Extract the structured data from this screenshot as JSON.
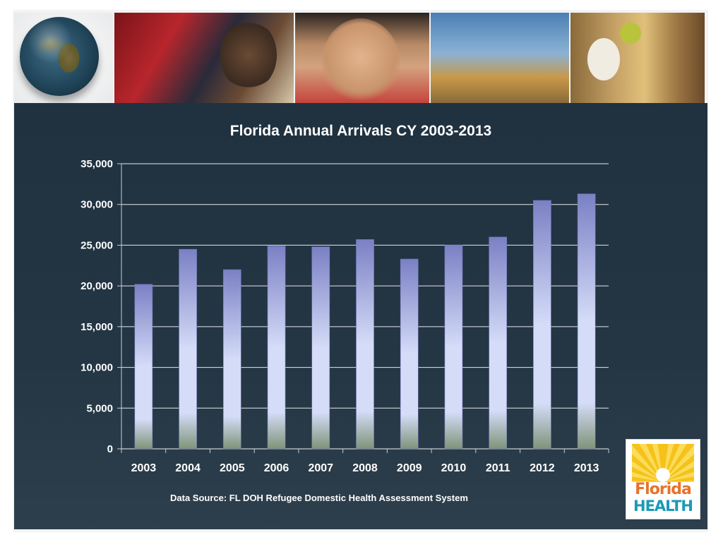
{
  "chart_data": {
    "type": "bar",
    "title": "Florida Annual Arrivals CY 2003-2013",
    "xlabel": "",
    "ylabel": "",
    "categories": [
      "2003",
      "2004",
      "2005",
      "2006",
      "2007",
      "2008",
      "2009",
      "2010",
      "2011",
      "2012",
      "2013"
    ],
    "values": [
      20200,
      24500,
      22000,
      24900,
      24800,
      25700,
      23300,
      25000,
      26000,
      30500,
      31300
    ],
    "ylim": [
      0,
      35000
    ],
    "yticks": [
      0,
      5000,
      10000,
      15000,
      20000,
      25000,
      30000,
      35000
    ],
    "ytick_labels": [
      "0",
      "5,000",
      "10,000",
      "15,000",
      "20,000",
      "25,000",
      "30,000",
      "35,000"
    ],
    "grid": true,
    "legend": "none",
    "colors": {
      "bar_top": "#7b80c4",
      "bar_mid": "#d4dcf8",
      "bar_bottom": "#7f9478",
      "gridline": "#e6e8ea",
      "axis": "#c8ccd0",
      "panel_bg": "#233543",
      "text": "#ffffff"
    }
  },
  "source_note": "Data Source: FL DOH Refugee Domestic Health Assessment System",
  "logo": {
    "line1": "Florida",
    "line2": "HEALTH"
  }
}
